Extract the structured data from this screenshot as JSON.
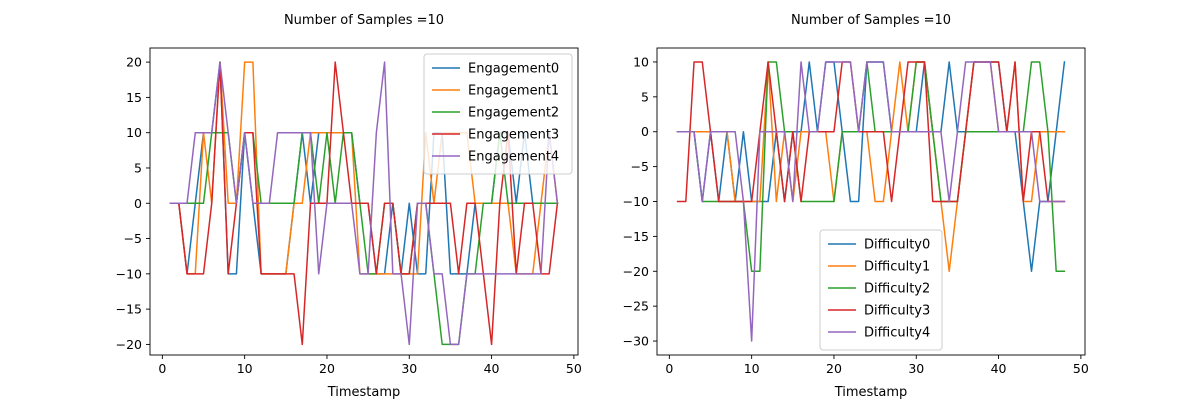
{
  "chart_data": [
    {
      "type": "line",
      "title": "Number of Samples =10",
      "xlabel": "Timestamp",
      "ylabel": "",
      "xlim": [
        -1.5,
        50.5
      ],
      "ylim": [
        -21.5,
        22
      ],
      "xticks": [
        0,
        10,
        20,
        30,
        40,
        50
      ],
      "yticks": [
        -20,
        -15,
        -10,
        -5,
        0,
        5,
        10,
        15,
        20
      ],
      "grid": false,
      "legend_position": "top-right",
      "x": [
        1,
        2,
        3,
        4,
        5,
        6,
        7,
        8,
        9,
        10,
        11,
        12,
        13,
        14,
        15,
        16,
        17,
        18,
        19,
        20,
        21,
        22,
        23,
        24,
        25,
        26,
        27,
        28,
        29,
        30,
        31,
        32,
        33,
        34,
        35,
        36,
        37,
        38,
        39,
        40,
        41,
        42,
        43,
        44,
        45,
        46,
        47,
        48
      ],
      "series": [
        {
          "name": "Engagement0",
          "color": "#1f77b4",
          "values": [
            0,
            0,
            -10,
            0,
            10,
            10,
            20,
            -10,
            -10,
            10,
            0,
            -10,
            -10,
            -10,
            -10,
            0,
            10,
            0,
            10,
            10,
            10,
            10,
            10,
            0,
            0,
            -10,
            -10,
            0,
            -10,
            0,
            -10,
            -10,
            10,
            10,
            -10,
            -10,
            -10,
            0,
            0,
            0,
            10,
            10,
            0,
            10,
            0,
            0,
            0,
            0
          ]
        },
        {
          "name": "Engagement1",
          "color": "#ff7f0e",
          "values": [
            0,
            0,
            -10,
            -10,
            10,
            0,
            20,
            0,
            0,
            20,
            20,
            -10,
            -10,
            -10,
            -10,
            0,
            0,
            10,
            10,
            10,
            10,
            10,
            10,
            -10,
            -10,
            -10,
            -10,
            -10,
            -10,
            -10,
            -10,
            10,
            0,
            10,
            10,
            10,
            10,
            0,
            0,
            0,
            0,
            0,
            -10,
            -10,
            -10,
            0,
            10,
            0
          ]
        },
        {
          "name": "Engagement2",
          "color": "#2ca02c",
          "values": [
            0,
            0,
            0,
            0,
            0,
            10,
            10,
            10,
            0,
            10,
            10,
            0,
            0,
            0,
            0,
            0,
            10,
            10,
            0,
            10,
            0,
            10,
            10,
            0,
            -10,
            -10,
            0,
            0,
            -10,
            -10,
            0,
            0,
            -10,
            -20,
            -20,
            -20,
            -10,
            -10,
            0,
            0,
            10,
            0,
            0,
            0,
            0,
            0,
            0,
            0
          ]
        },
        {
          "name": "Engagement3",
          "color": "#d62728",
          "values": [
            0,
            0,
            -10,
            -10,
            -10,
            0,
            20,
            -10,
            0,
            10,
            10,
            -10,
            -10,
            -10,
            -10,
            -10,
            -20,
            0,
            0,
            0,
            20,
            10,
            0,
            0,
            0,
            -10,
            0,
            0,
            -10,
            -10,
            0,
            0,
            0,
            0,
            0,
            -10,
            0,
            0,
            -10,
            -20,
            0,
            10,
            -10,
            0,
            0,
            -10,
            -10,
            0
          ]
        },
        {
          "name": "Engagement4",
          "color": "#9467bd",
          "values": [
            0,
            0,
            0,
            10,
            10,
            10,
            20,
            10,
            0,
            10,
            0,
            0,
            0,
            10,
            10,
            10,
            10,
            10,
            -10,
            0,
            0,
            0,
            0,
            -10,
            -10,
            10,
            20,
            -10,
            -10,
            -20,
            0,
            0,
            -10,
            -10,
            -20,
            -20,
            -10,
            -10,
            -10,
            -10,
            -10,
            -10,
            -10,
            -10,
            -10,
            -10,
            10,
            0
          ]
        }
      ]
    },
    {
      "type": "line",
      "title": "Number of Samples =10",
      "xlabel": "Timestamp",
      "ylabel": "",
      "xlim": [
        -1.5,
        50.5
      ],
      "ylim": [
        -32,
        12
      ],
      "xticks": [
        0,
        10,
        20,
        30,
        40,
        50
      ],
      "yticks": [
        -30,
        -25,
        -20,
        -15,
        -10,
        -5,
        0,
        5,
        10
      ],
      "grid": false,
      "legend_position": "bottom-center",
      "x": [
        1,
        2,
        3,
        4,
        5,
        6,
        7,
        8,
        9,
        10,
        11,
        12,
        13,
        14,
        15,
        16,
        17,
        18,
        19,
        20,
        21,
        22,
        23,
        24,
        25,
        26,
        27,
        28,
        29,
        30,
        31,
        32,
        33,
        34,
        35,
        36,
        37,
        38,
        39,
        40,
        41,
        42,
        43,
        44,
        45,
        46,
        47,
        48
      ],
      "series": [
        {
          "name": "Difficulty0",
          "color": "#1f77b4",
          "values": [
            0,
            0,
            0,
            -10,
            0,
            -10,
            0,
            -10,
            0,
            -10,
            -10,
            -10,
            0,
            -10,
            0,
            0,
            10,
            0,
            10,
            10,
            0,
            -10,
            -10,
            10,
            10,
            10,
            0,
            0,
            0,
            0,
            10,
            0,
            0,
            10,
            0,
            0,
            10,
            10,
            10,
            10,
            0,
            0,
            -10,
            -20,
            -10,
            -10,
            0,
            10
          ]
        },
        {
          "name": "Difficulty1",
          "color": "#ff7f0e",
          "values": [
            0,
            0,
            0,
            0,
            0,
            0,
            0,
            -10,
            -10,
            -10,
            -10,
            10,
            -10,
            0,
            -10,
            0,
            0,
            0,
            0,
            -10,
            0,
            0,
            0,
            0,
            -10,
            -10,
            0,
            10,
            0,
            10,
            10,
            0,
            -10,
            -20,
            -10,
            0,
            10,
            10,
            10,
            0,
            0,
            10,
            -10,
            -10,
            0,
            0,
            0,
            0
          ]
        },
        {
          "name": "Difficulty2",
          "color": "#2ca02c",
          "values": [
            0,
            0,
            0,
            -10,
            -10,
            -10,
            -10,
            -10,
            -10,
            -20,
            -20,
            10,
            10,
            0,
            0,
            -10,
            -10,
            -10,
            -10,
            -10,
            0,
            0,
            0,
            10,
            0,
            0,
            0,
            0,
            0,
            10,
            10,
            0,
            -10,
            -10,
            -10,
            0,
            0,
            0,
            0,
            0,
            0,
            0,
            0,
            10,
            10,
            0,
            -20,
            -20
          ]
        },
        {
          "name": "Difficulty3",
          "color": "#d62728",
          "values": [
            -10,
            -10,
            10,
            10,
            0,
            -10,
            -10,
            -10,
            -10,
            -10,
            0,
            10,
            0,
            -10,
            0,
            -10,
            0,
            0,
            0,
            0,
            10,
            10,
            0,
            0,
            0,
            0,
            -10,
            0,
            10,
            10,
            10,
            -10,
            -10,
            -10,
            -10,
            0,
            10,
            10,
            10,
            10,
            0,
            10,
            -10,
            0,
            0,
            -10,
            -10,
            -10
          ]
        },
        {
          "name": "Difficulty4",
          "color": "#9467bd",
          "values": [
            0,
            0,
            0,
            -10,
            0,
            0,
            0,
            0,
            -10,
            -30,
            0,
            0,
            0,
            0,
            -10,
            10,
            0,
            0,
            10,
            10,
            10,
            10,
            0,
            10,
            10,
            10,
            0,
            0,
            0,
            0,
            0,
            0,
            0,
            -10,
            0,
            10,
            10,
            10,
            10,
            0,
            0,
            0,
            0,
            0,
            -10,
            -10,
            -10,
            -10
          ]
        }
      ]
    }
  ]
}
